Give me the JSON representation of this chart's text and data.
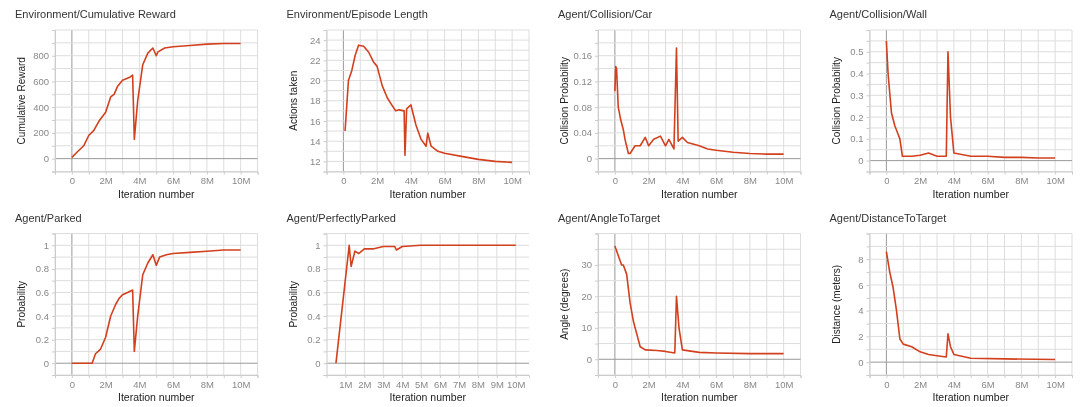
{
  "chart_data": [
    {
      "type": "line",
      "title": "Environment/Cumulative Reward",
      "xlabel": "Iteration number",
      "ylabel": "Cumulative Reward",
      "grid": true,
      "xlim": [
        -1,
        11
      ],
      "ylim": [
        -100,
        1000
      ],
      "xticks": [
        {
          "value": -1,
          "label": null
        },
        {
          "value": 0,
          "label": "0"
        },
        {
          "value": 1,
          "label": null
        },
        {
          "value": 2,
          "label": "2M"
        },
        {
          "value": 3,
          "label": null
        },
        {
          "value": 4,
          "label": "4M"
        },
        {
          "value": 5,
          "label": null
        },
        {
          "value": 6,
          "label": "6M"
        },
        {
          "value": 7,
          "label": null
        },
        {
          "value": 8,
          "label": "8M"
        },
        {
          "value": 9,
          "label": null
        },
        {
          "value": 10,
          "label": "10M"
        },
        {
          "value": 11,
          "label": null
        }
      ],
      "yticks": [
        {
          "value": -100,
          "label": null
        },
        0,
        {
          "value": 100,
          "label": null
        },
        200,
        {
          "value": 300,
          "label": null
        },
        400,
        {
          "value": 500,
          "label": null
        },
        600,
        {
          "value": 700,
          "label": null
        },
        800,
        {
          "value": 900,
          "label": null
        },
        {
          "value": 1000,
          "label": null
        }
      ],
      "series": [
        {
          "color": "#d2401e",
          "x": [
            0,
            0.3,
            0.7,
            1.0,
            1.3,
            1.6,
            2.0,
            2.3,
            2.5,
            2.7,
            3.0,
            3.4,
            3.6,
            3.7,
            3.9,
            4.2,
            4.5,
            4.8,
            5.0,
            5.1,
            5.5,
            6,
            7,
            8,
            9,
            10
          ],
          "values": [
            10,
            50,
            100,
            180,
            220,
            290,
            360,
            480,
            500,
            560,
            610,
            630,
            650,
            150,
            450,
            730,
            820,
            860,
            800,
            830,
            860,
            870,
            880,
            890,
            895,
            895
          ]
        }
      ]
    },
    {
      "type": "line",
      "title": "Environment/Episode Length",
      "xlabel": "Iteration number",
      "ylabel": "Actions taken",
      "grid": true,
      "xlim": [
        -1,
        11
      ],
      "ylim": [
        11,
        25
      ],
      "xticks": [
        {
          "value": -1,
          "label": null
        },
        {
          "value": 0,
          "label": "0"
        },
        {
          "value": 1,
          "label": null
        },
        {
          "value": 2,
          "label": "2M"
        },
        {
          "value": 3,
          "label": null
        },
        {
          "value": 4,
          "label": "4M"
        },
        {
          "value": 5,
          "label": null
        },
        {
          "value": 6,
          "label": "6M"
        },
        {
          "value": 7,
          "label": null
        },
        {
          "value": 8,
          "label": "8M"
        },
        {
          "value": 9,
          "label": null
        },
        {
          "value": 10,
          "label": "10M"
        },
        {
          "value": 11,
          "label": null
        }
      ],
      "yticks": [
        {
          "value": 11,
          "label": null
        },
        12,
        {
          "value": 13,
          "label": null
        },
        14,
        {
          "value": 15,
          "label": null
        },
        16,
        {
          "value": 17,
          "label": null
        },
        18,
        {
          "value": 19,
          "label": null
        },
        20,
        {
          "value": 21,
          "label": null
        },
        22,
        {
          "value": 23,
          "label": null
        },
        24,
        {
          "value": 25,
          "label": null
        }
      ],
      "series": [
        {
          "color": "#d2401e",
          "x": [
            0.1,
            0.2,
            0.3,
            0.5,
            0.7,
            0.9,
            1.2,
            1.5,
            1.8,
            2.0,
            2.3,
            2.6,
            2.9,
            3.1,
            3.3,
            3.6,
            3.65,
            3.75,
            4.0,
            4.3,
            4.6,
            4.9,
            5.0,
            5.2,
            5.6,
            6,
            7,
            8,
            9,
            10
          ],
          "values": [
            15,
            17.5,
            20,
            21,
            22.5,
            23.5,
            23.4,
            22.8,
            21.8,
            21.4,
            19.5,
            18.3,
            17.5,
            17.0,
            17.1,
            17.0,
            12.6,
            17.2,
            17.6,
            15.6,
            14.2,
            13.5,
            14.8,
            13.5,
            13.0,
            12.8,
            12.5,
            12.2,
            12.0,
            11.9
          ]
        }
      ]
    },
    {
      "type": "line",
      "title": "Agent/Collision/Car",
      "xlabel": "Iteration number",
      "ylabel": "Collision Probability",
      "grid": true,
      "xlim": [
        -1,
        11
      ],
      "ylim": [
        -0.02,
        0.2
      ],
      "xticks": [
        {
          "value": -1,
          "label": null
        },
        {
          "value": 0,
          "label": "0"
        },
        {
          "value": 1,
          "label": null
        },
        {
          "value": 2,
          "label": "2M"
        },
        {
          "value": 3,
          "label": null
        },
        {
          "value": 4,
          "label": "4M"
        },
        {
          "value": 5,
          "label": null
        },
        {
          "value": 6,
          "label": "6M"
        },
        {
          "value": 7,
          "label": null
        },
        {
          "value": 8,
          "label": "8M"
        },
        {
          "value": 9,
          "label": null
        },
        {
          "value": 10,
          "label": "10M"
        },
        {
          "value": 11,
          "label": null
        }
      ],
      "yticks": [
        {
          "value": -0.02,
          "label": null
        },
        0,
        {
          "value": 0.02,
          "label": null
        },
        0.04,
        {
          "value": 0.06,
          "label": null
        },
        0.08,
        {
          "value": 0.1,
          "label": null
        },
        0.12,
        {
          "value": 0.14,
          "label": null
        },
        0.16,
        {
          "value": 0.18,
          "label": null
        },
        {
          "value": 0.2,
          "label": null
        }
      ],
      "series": [
        {
          "color": "#d2401e",
          "x": [
            0,
            0.05,
            0.1,
            0.2,
            0.35,
            0.5,
            0.6,
            0.8,
            0.9,
            1.2,
            1.5,
            1.8,
            2.0,
            2.3,
            2.7,
            3.0,
            3.2,
            3.5,
            3.65,
            3.75,
            4.0,
            4.3,
            5.0,
            5.5,
            6,
            7,
            8,
            9,
            10
          ],
          "values": [
            0.105,
            0.143,
            0.14,
            0.08,
            0.06,
            0.045,
            0.03,
            0.008,
            0.008,
            0.02,
            0.02,
            0.033,
            0.02,
            0.03,
            0.035,
            0.02,
            0.03,
            0.015,
            0.172,
            0.027,
            0.033,
            0.025,
            0.02,
            0.015,
            0.013,
            0.01,
            0.008,
            0.007,
            0.007
          ]
        }
      ]
    },
    {
      "type": "line",
      "title": "Agent/Collision/Wall",
      "xlabel": "Iteration number",
      "ylabel": "Collision Probability",
      "grid": true,
      "xlim": [
        -1,
        11
      ],
      "ylim": [
        -0.05,
        0.6
      ],
      "xticks": [
        {
          "value": -1,
          "label": null
        },
        {
          "value": 0,
          "label": "0"
        },
        {
          "value": 1,
          "label": null
        },
        {
          "value": 2,
          "label": "2M"
        },
        {
          "value": 3,
          "label": null
        },
        {
          "value": 4,
          "label": "4M"
        },
        {
          "value": 5,
          "label": null
        },
        {
          "value": 6,
          "label": "6M"
        },
        {
          "value": 7,
          "label": null
        },
        {
          "value": 8,
          "label": "8M"
        },
        {
          "value": 9,
          "label": null
        },
        {
          "value": 10,
          "label": "10M"
        },
        {
          "value": 11,
          "label": null
        }
      ],
      "yticks": [
        {
          "value": -0.05,
          "label": null
        },
        0,
        {
          "value": 0.05,
          "label": null
        },
        0.1,
        {
          "value": 0.15,
          "label": null
        },
        0.2,
        {
          "value": 0.25,
          "label": null
        },
        0.3,
        {
          "value": 0.35,
          "label": null
        },
        0.4,
        {
          "value": 0.45,
          "label": null
        },
        0.5,
        {
          "value": 0.55,
          "label": null
        },
        {
          "value": 0.6,
          "label": null
        }
      ],
      "series": [
        {
          "color": "#d2401e",
          "x": [
            0,
            0.1,
            0.3,
            0.5,
            0.7,
            0.8,
            0.95,
            1.5,
            2,
            2.5,
            3,
            3.55,
            3.65,
            3.8,
            4.0,
            5,
            6,
            7,
            8,
            9,
            10
          ],
          "values": [
            0.55,
            0.4,
            0.22,
            0.16,
            0.12,
            0.1,
            0.02,
            0.02,
            0.025,
            0.035,
            0.02,
            0.02,
            0.5,
            0.2,
            0.035,
            0.02,
            0.02,
            0.015,
            0.015,
            0.012,
            0.012
          ]
        }
      ]
    },
    {
      "type": "line",
      "title": "Agent/Parked",
      "xlabel": "Iteration number",
      "ylabel": "Probability",
      "grid": true,
      "xlim": [
        -1,
        11
      ],
      "ylim": [
        -0.1,
        1.1
      ],
      "xticks": [
        {
          "value": -1,
          "label": null
        },
        {
          "value": 0,
          "label": "0"
        },
        {
          "value": 1,
          "label": null
        },
        {
          "value": 2,
          "label": "2M"
        },
        {
          "value": 3,
          "label": null
        },
        {
          "value": 4,
          "label": "4M"
        },
        {
          "value": 5,
          "label": null
        },
        {
          "value": 6,
          "label": "6M"
        },
        {
          "value": 7,
          "label": null
        },
        {
          "value": 8,
          "label": "8M"
        },
        {
          "value": 9,
          "label": null
        },
        {
          "value": 10,
          "label": "10M"
        },
        {
          "value": 11,
          "label": null
        }
      ],
      "yticks": [
        {
          "value": -0.1,
          "label": null
        },
        0,
        {
          "value": 0.1,
          "label": null
        },
        0.2,
        {
          "value": 0.3,
          "label": null
        },
        0.4,
        {
          "value": 0.5,
          "label": null
        },
        0.6,
        {
          "value": 0.7,
          "label": null
        },
        0.8,
        {
          "value": 0.9,
          "label": null
        },
        1,
        {
          "value": 1.1,
          "label": null
        }
      ],
      "series": [
        {
          "color": "#d2401e",
          "x": [
            0,
            1.2,
            1.4,
            1.7,
            2.0,
            2.3,
            2.6,
            2.8,
            3.0,
            3.3,
            3.6,
            3.7,
            3.9,
            4.2,
            4.5,
            4.8,
            5.0,
            5.2,
            5.6,
            6,
            7,
            8,
            9,
            10
          ],
          "values": [
            0,
            0,
            0.08,
            0.12,
            0.22,
            0.4,
            0.5,
            0.55,
            0.58,
            0.6,
            0.62,
            0.1,
            0.4,
            0.75,
            0.85,
            0.92,
            0.83,
            0.9,
            0.92,
            0.93,
            0.94,
            0.95,
            0.96,
            0.96
          ]
        }
      ]
    },
    {
      "type": "line",
      "title": "Agent/PerfectlyParked",
      "xlabel": "Iteration number",
      "ylabel": "Probability",
      "grid": true,
      "xlim": [
        0,
        10.7
      ],
      "ylim": [
        -0.1,
        1.1
      ],
      "xticks": [
        {
          "value": 1,
          "label": "1M"
        },
        {
          "value": 2,
          "label": "2M"
        },
        {
          "value": 3,
          "label": "3M"
        },
        {
          "value": 4,
          "label": "4M"
        },
        {
          "value": 5,
          "label": "5M"
        },
        {
          "value": 6,
          "label": "6M"
        },
        {
          "value": 7,
          "label": "7M"
        },
        {
          "value": 8,
          "label": "8M"
        },
        {
          "value": 9,
          "label": "9M"
        },
        {
          "value": 10,
          "label": "10M"
        }
      ],
      "yticks": [
        {
          "value": -0.1,
          "label": null
        },
        0,
        {
          "value": 0.1,
          "label": null
        },
        0.2,
        {
          "value": 0.3,
          "label": null
        },
        0.4,
        {
          "value": 0.5,
          "label": null
        },
        0.6,
        {
          "value": 0.7,
          "label": null
        },
        0.8,
        {
          "value": 0.9,
          "label": null
        },
        1,
        {
          "value": 1.1,
          "label": null
        }
      ],
      "series": [
        {
          "color": "#d2401e",
          "x": [
            0.5,
            1.2,
            1.3,
            1.5,
            1.7,
            2.0,
            2.5,
            3,
            3.6,
            3.7,
            4,
            5,
            10
          ],
          "values": [
            0,
            1.0,
            0.82,
            0.95,
            0.93,
            0.97,
            0.97,
            0.99,
            0.99,
            0.96,
            0.99,
            1.0,
            1.0
          ]
        }
      ]
    },
    {
      "type": "line",
      "title": "Agent/AngleToTarget",
      "xlabel": "Iteration number",
      "ylabel": "Angle (degrees)",
      "grid": true,
      "xlim": [
        -1,
        11
      ],
      "ylim": [
        -5,
        40
      ],
      "xticks": [
        {
          "value": -1,
          "label": null
        },
        {
          "value": 0,
          "label": "0"
        },
        {
          "value": 1,
          "label": null
        },
        {
          "value": 2,
          "label": "2M"
        },
        {
          "value": 3,
          "label": null
        },
        {
          "value": 4,
          "label": "4M"
        },
        {
          "value": 5,
          "label": null
        },
        {
          "value": 6,
          "label": "6M"
        },
        {
          "value": 7,
          "label": null
        },
        {
          "value": 8,
          "label": "8M"
        },
        {
          "value": 9,
          "label": null
        },
        {
          "value": 10,
          "label": "10M"
        },
        {
          "value": 11,
          "label": null
        }
      ],
      "yticks": [
        {
          "value": -5,
          "label": null
        },
        0,
        {
          "value": 5,
          "label": null
        },
        10,
        {
          "value": 15,
          "label": null
        },
        20,
        {
          "value": 25,
          "label": null
        },
        30,
        {
          "value": 35,
          "label": null
        },
        {
          "value": 40,
          "label": null
        }
      ],
      "series": [
        {
          "color": "#d2401e",
          "x": [
            0,
            0.2,
            0.4,
            0.5,
            0.7,
            0.9,
            1.1,
            1.3,
            1.5,
            1.8,
            2.5,
            3,
            3.55,
            3.65,
            3.8,
            4.0,
            5,
            6,
            8,
            10
          ],
          "values": [
            36,
            33,
            30,
            30,
            27,
            18,
            12,
            8,
            4,
            3,
            2.8,
            2.5,
            2,
            20,
            10,
            3,
            2.2,
            2,
            1.8,
            1.8
          ]
        }
      ]
    },
    {
      "type": "line",
      "title": "Agent/DistanceToTarget",
      "xlabel": "Iteration number",
      "ylabel": "Distance (meters)",
      "grid": true,
      "xlim": [
        -1,
        11
      ],
      "ylim": [
        -1,
        10
      ],
      "xticks": [
        {
          "value": -1,
          "label": null
        },
        {
          "value": 0,
          "label": "0"
        },
        {
          "value": 1,
          "label": null
        },
        {
          "value": 2,
          "label": "2M"
        },
        {
          "value": 3,
          "label": null
        },
        {
          "value": 4,
          "label": "4M"
        },
        {
          "value": 5,
          "label": null
        },
        {
          "value": 6,
          "label": "6M"
        },
        {
          "value": 7,
          "label": null
        },
        {
          "value": 8,
          "label": "8M"
        },
        {
          "value": 9,
          "label": null
        },
        {
          "value": 10,
          "label": "10M"
        },
        {
          "value": 11,
          "label": null
        }
      ],
      "yticks": [
        {
          "value": -1,
          "label": null
        },
        0,
        {
          "value": 1,
          "label": null
        },
        2,
        {
          "value": 3,
          "label": null
        },
        4,
        {
          "value": 5,
          "label": null
        },
        6,
        {
          "value": 7,
          "label": null
        },
        8,
        {
          "value": 9,
          "label": null
        },
        {
          "value": 10,
          "label": null
        }
      ],
      "series": [
        {
          "color": "#d2401e",
          "x": [
            0,
            0.2,
            0.4,
            0.6,
            0.8,
            1.0,
            1.5,
            2,
            2.5,
            3,
            3.55,
            3.65,
            3.8,
            4.0,
            5,
            7,
            10
          ],
          "values": [
            8.6,
            7,
            5.8,
            4,
            1.8,
            1.4,
            1.2,
            0.8,
            0.6,
            0.5,
            0.4,
            2.2,
            1.2,
            0.6,
            0.3,
            0.25,
            0.2
          ]
        }
      ]
    }
  ]
}
